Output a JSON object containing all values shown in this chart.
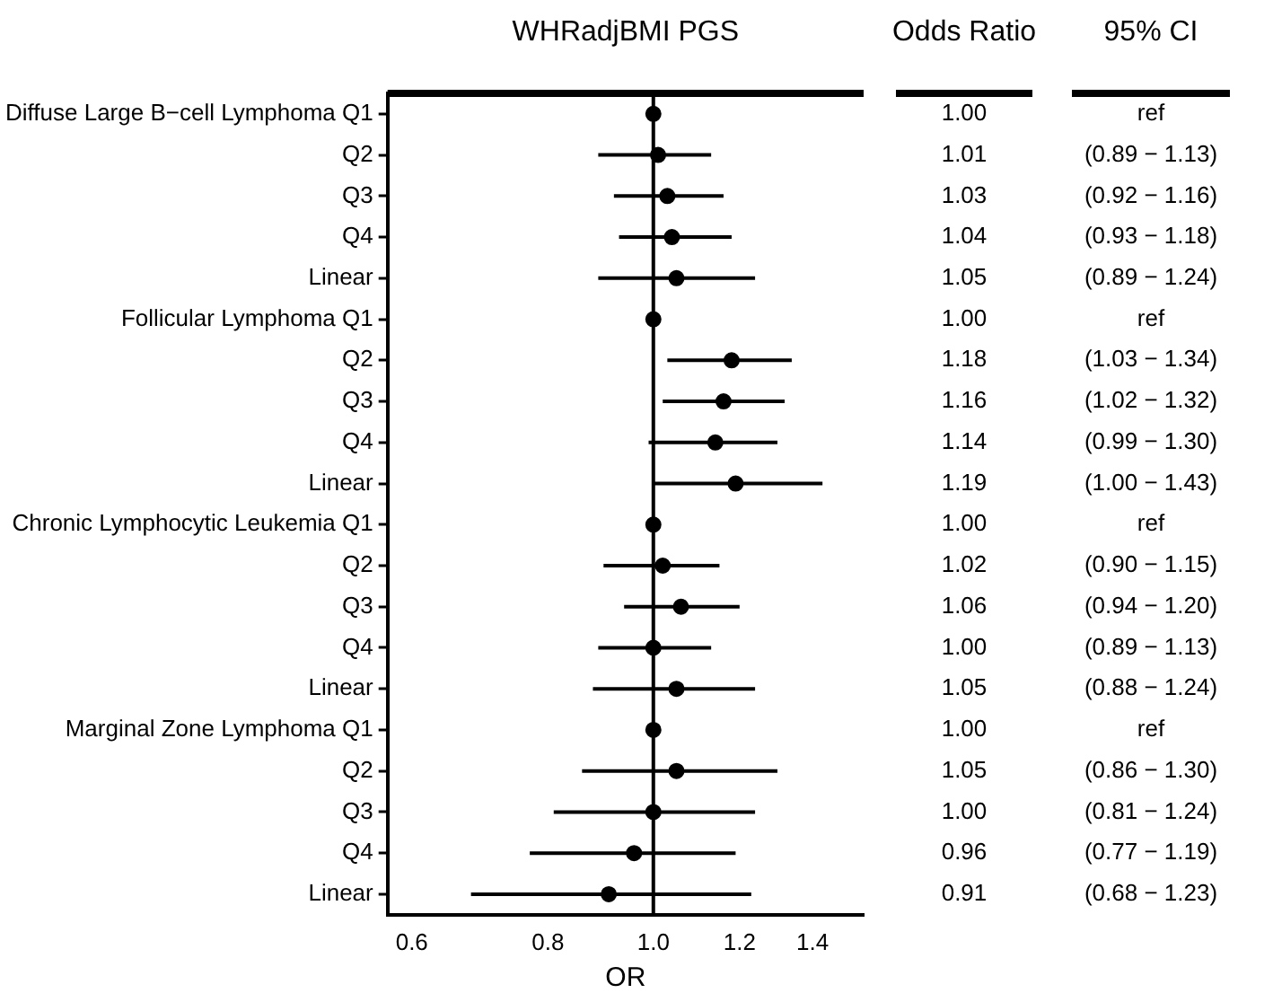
{
  "chart_data": {
    "type": "scatter",
    "orientation": "horizontal",
    "title": "WHRadjBMI PGS",
    "xlabel": "OR",
    "categories": [
      "Diffuse Large B−cell Lymphoma Q1",
      "Q2",
      "Q3",
      "Q4",
      "Linear",
      "Follicular Lymphoma Q1",
      "Q2",
      "Q3",
      "Q4",
      "Linear",
      "Chronic Lymphocytic Leukemia Q1",
      "Q2",
      "Q3",
      "Q4",
      "Linear",
      "Marginal Zone Lymphoma Q1",
      "Q2",
      "Q3",
      "Q4",
      "Linear"
    ],
    "values": [
      1.0,
      1.01,
      1.03,
      1.04,
      1.05,
      1.0,
      1.18,
      1.16,
      1.14,
      1.19,
      1.0,
      1.02,
      1.06,
      1.0,
      1.05,
      1.0,
      1.05,
      1.0,
      0.96,
      0.91
    ],
    "value_labels": [
      "1.00",
      "1.01",
      "1.03",
      "1.04",
      "1.05",
      "1.00",
      "1.18",
      "1.16",
      "1.14",
      "1.19",
      "1.00",
      "1.02",
      "1.06",
      "1.00",
      "1.05",
      "1.00",
      "1.05",
      "1.00",
      "0.96",
      "0.91"
    ],
    "errors": [
      null,
      [
        0.89,
        1.13
      ],
      [
        0.92,
        1.16
      ],
      [
        0.93,
        1.18
      ],
      [
        0.89,
        1.24
      ],
      null,
      [
        1.03,
        1.34
      ],
      [
        1.02,
        1.32
      ],
      [
        0.99,
        1.3
      ],
      [
        1.0,
        1.43
      ],
      null,
      [
        0.9,
        1.15
      ],
      [
        0.94,
        1.2
      ],
      [
        0.89,
        1.13
      ],
      [
        0.88,
        1.24
      ],
      null,
      [
        0.86,
        1.3
      ],
      [
        0.81,
        1.24
      ],
      [
        0.77,
        1.19
      ],
      [
        0.68,
        1.23
      ]
    ],
    "color": "#000000",
    "marker": "circle",
    "log": "x",
    "xlim": [
      0.57,
      1.56
    ],
    "xticks": [
      0.6,
      0.8,
      {
        "value": 1.0,
        "label": "1.0"
      },
      1.2,
      1.4
    ],
    "ref_lines": [
      {
        "axis": "x",
        "value": 1.0,
        "label": null
      }
    ],
    "annotations": [
      "Odds Ratio",
      "95% CI",
      "ref",
      "(0.89 − 1.13)",
      "(0.92 − 1.16)",
      "(0.93 − 1.18)",
      "(0.89 − 1.24)",
      "ref",
      "(1.03 − 1.34)",
      "(1.02 − 1.32)",
      "(0.99 − 1.30)",
      "(1.00 − 1.43)",
      "ref",
      "(0.90 − 1.15)",
      "(0.94 − 1.20)",
      "(0.89 − 1.13)",
      "(0.88 − 1.24)",
      "ref",
      "(0.86 − 1.30)",
      "(0.81 − 1.24)",
      "(0.77 − 1.19)",
      "(0.68 − 1.23)"
    ]
  }
}
